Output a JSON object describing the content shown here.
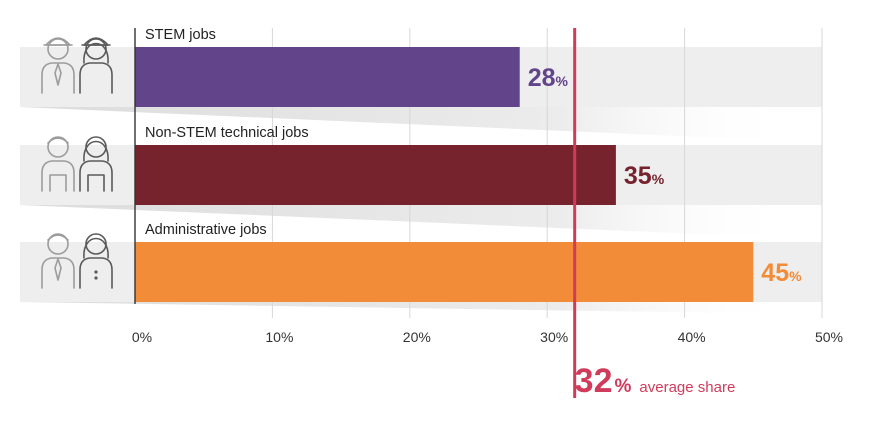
{
  "chart_data": {
    "type": "bar",
    "orientation": "horizontal",
    "categories": [
      "STEM jobs",
      "Non-STEM technical jobs",
      "Administrative jobs"
    ],
    "values": [
      28,
      35,
      45
    ],
    "value_suffix": "%",
    "colors": [
      "#62448a",
      "#76232e",
      "#f28c38"
    ],
    "xlim": [
      0,
      50
    ],
    "xticks": [
      0,
      10,
      20,
      30,
      40,
      50
    ],
    "xtick_labels": [
      "0%",
      "10%",
      "20%",
      "30%",
      "40%",
      "50%"
    ],
    "grid": true,
    "reference_line": {
      "value": 32,
      "value_label": "32",
      "suffix": "%",
      "label": "average share",
      "color": "#d13b5b"
    },
    "icons": [
      "worker-pair-icon",
      "mechanic-pair-icon",
      "office-worker-pair-icon"
    ]
  }
}
